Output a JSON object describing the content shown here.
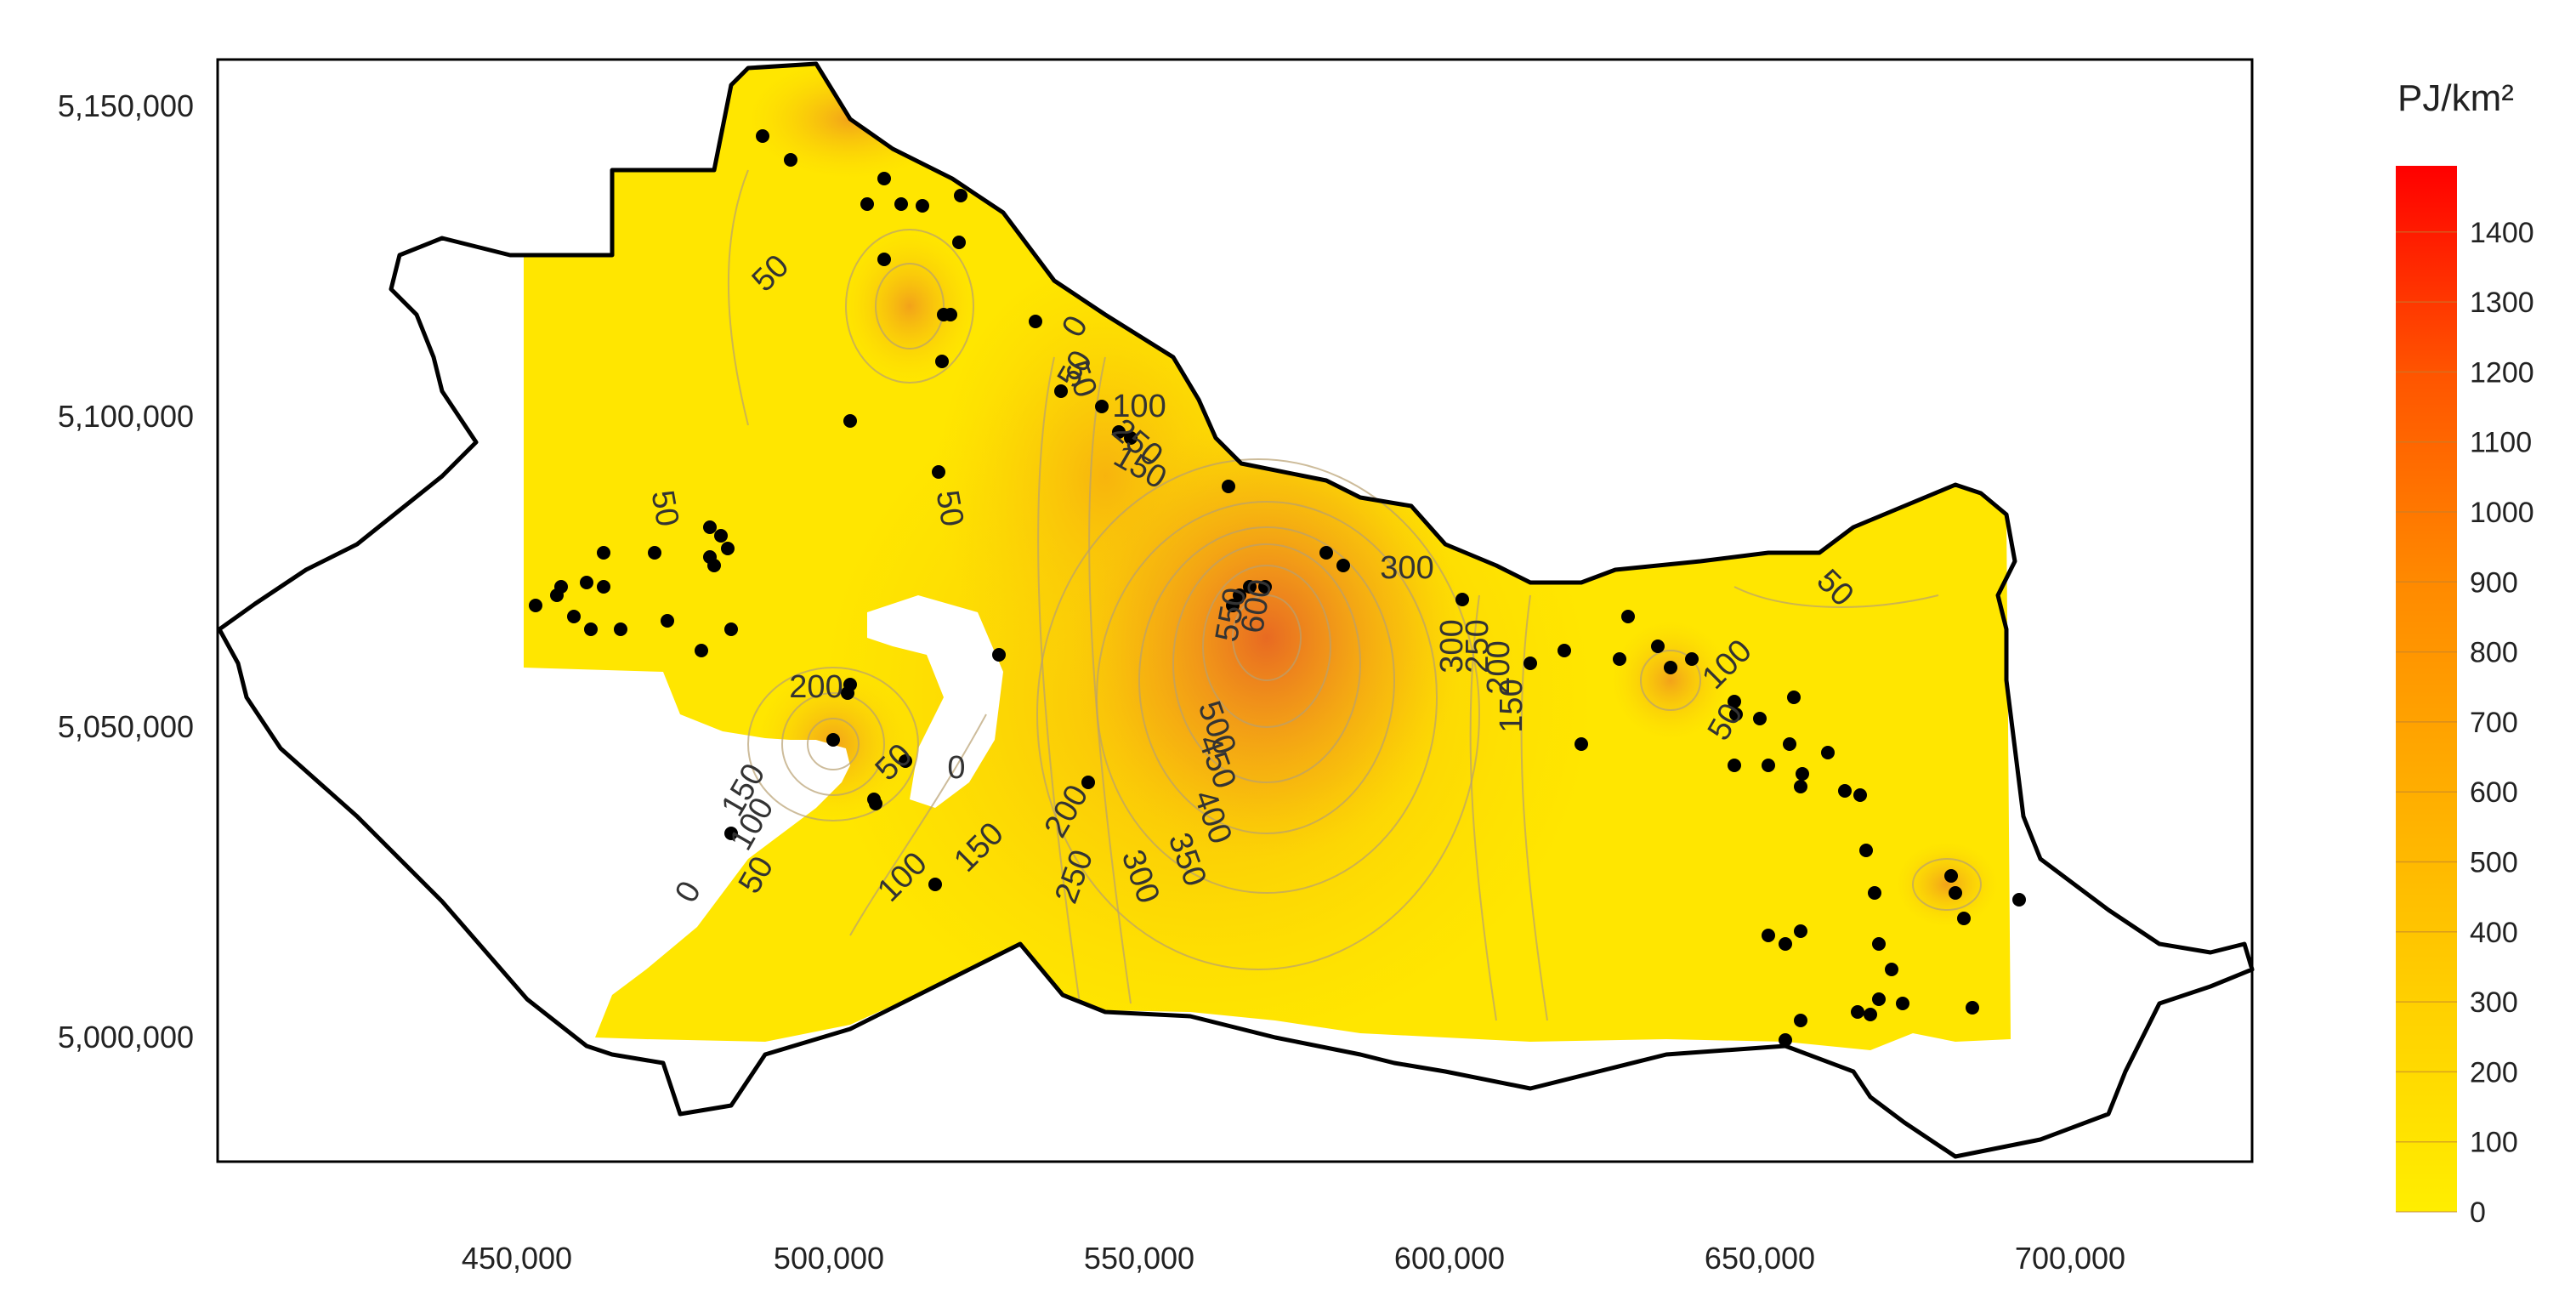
{
  "map": {
    "legend_title": "PJ/km²",
    "legend_ticks": [
      "0",
      "100",
      "200",
      "300",
      "400",
      "500",
      "600",
      "700",
      "800",
      "900",
      "1000",
      "1100",
      "1200",
      "1300",
      "1400"
    ],
    "x_ticks": [
      "450,000",
      "500,000",
      "550,000",
      "600,000",
      "650,000",
      "700,000"
    ],
    "y_ticks": [
      "5,150,000",
      "5,100,000",
      "5,050,000",
      "5,000,000"
    ],
    "contour_labels": [
      "50",
      "50",
      "0",
      "50",
      "50",
      "100",
      "150",
      "250",
      "50",
      "200",
      "150",
      "100",
      "0",
      "50",
      "0",
      "50",
      "100",
      "150",
      "200",
      "250",
      "300",
      "350",
      "400",
      "450",
      "500",
      "550",
      "600",
      "300",
      "300",
      "250",
      "200",
      "150",
      "100",
      "50",
      "50"
    ],
    "colors": {
      "low": "#ffee00",
      "mid": "#ffb000",
      "high": "#ff0000",
      "peak": "#e8601a",
      "boundary": "#000000",
      "points": "#000000"
    }
  }
}
